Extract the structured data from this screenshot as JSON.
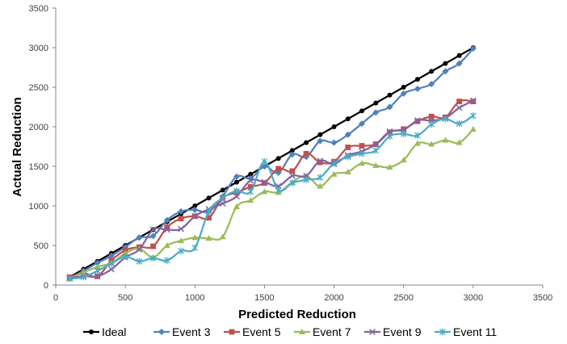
{
  "chart_data": {
    "type": "line",
    "xlabel": "Predicted Reduction",
    "ylabel": "Actual Reduction",
    "xlim": [
      0,
      3500
    ],
    "ylim": [
      0,
      3500
    ],
    "xticks": [
      0,
      500,
      1000,
      1500,
      2000,
      2500,
      3000,
      3500
    ],
    "yticks": [
      0,
      500,
      1000,
      1500,
      2000,
      2500,
      3000,
      3500
    ],
    "grid": false,
    "legend_position": "bottom",
    "x": [
      100,
      200,
      300,
      400,
      500,
      600,
      700,
      800,
      900,
      1000,
      1100,
      1200,
      1300,
      1400,
      1500,
      1600,
      1700,
      1800,
      1900,
      2000,
      2100,
      2200,
      2300,
      2400,
      2500,
      2600,
      2700,
      2800,
      2900,
      3000
    ],
    "series": [
      {
        "name": "Ideal",
        "color": "#000000",
        "marker": "circle",
        "values": [
          100,
          200,
          300,
          400,
          500,
          600,
          700,
          800,
          900,
          1000,
          1100,
          1200,
          1300,
          1400,
          1500,
          1600,
          1700,
          1800,
          1900,
          2000,
          2100,
          2200,
          2300,
          2400,
          2500,
          2600,
          2700,
          2800,
          2900,
          3000
        ]
      },
      {
        "name": "Event 3",
        "color": "#4f81bd",
        "marker": "diamond",
        "values": [
          90,
          180,
          280,
          370,
          480,
          600,
          620,
          820,
          930,
          950,
          930,
          1120,
          1370,
          1350,
          1500,
          1420,
          1650,
          1620,
          1820,
          1800,
          1900,
          2040,
          2180,
          2250,
          2420,
          2480,
          2540,
          2700,
          2800,
          2990
        ]
      },
      {
        "name": "Event 5",
        "color": "#c0504d",
        "marker": "square",
        "values": [
          100,
          150,
          110,
          310,
          440,
          480,
          490,
          730,
          840,
          870,
          850,
          1100,
          1170,
          1240,
          1290,
          1470,
          1440,
          1660,
          1550,
          1560,
          1740,
          1760,
          1780,
          1930,
          1970,
          2070,
          2130,
          2120,
          2320,
          2320
        ]
      },
      {
        "name": "Event 7",
        "color": "#9bbb59",
        "marker": "triangle",
        "values": [
          80,
          160,
          230,
          280,
          400,
          460,
          350,
          500,
          560,
          600,
          590,
          610,
          990,
          1070,
          1180,
          1170,
          1300,
          1380,
          1250,
          1400,
          1430,
          1540,
          1510,
          1490,
          1580,
          1790,
          1780,
          1830,
          1800,
          1970
        ]
      },
      {
        "name": "Event 9",
        "color": "#8064a2",
        "marker": "x",
        "values": [
          90,
          110,
          110,
          200,
          350,
          450,
          700,
          700,
          710,
          870,
          960,
          1030,
          1120,
          1320,
          1300,
          1250,
          1380,
          1380,
          1570,
          1530,
          1640,
          1690,
          1780,
          1940,
          1960,
          2080,
          2080,
          2110,
          2240,
          2330
        ]
      },
      {
        "name": "Event 11",
        "color": "#4bacc6",
        "marker": "star",
        "values": [
          80,
          100,
          180,
          270,
          360,
          300,
          340,
          310,
          430,
          470,
          930,
          1100,
          1190,
          1180,
          1560,
          1200,
          1290,
          1330,
          1360,
          1540,
          1620,
          1660,
          1700,
          1880,
          1910,
          1890,
          2030,
          2100,
          2040,
          2140
        ]
      }
    ]
  }
}
